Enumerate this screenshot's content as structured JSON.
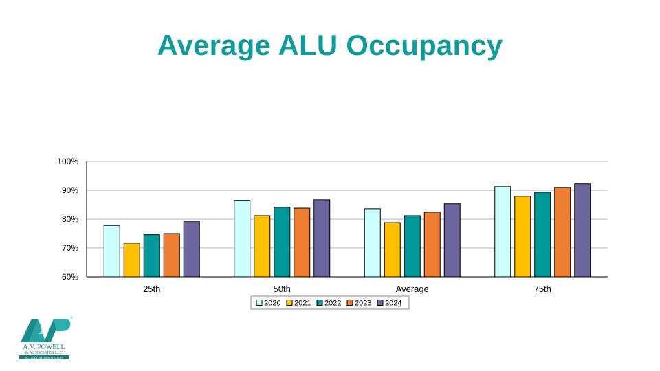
{
  "slide": {
    "title": "Average ALU Occupancy"
  },
  "colors": {
    "title": "#109a9a",
    "gridline": "#b0b0b0",
    "logo": "#1a8c8c"
  },
  "chart_data": {
    "type": "bar",
    "title": "",
    "xlabel": "",
    "ylabel": "",
    "categories": [
      "25th",
      "50th",
      "Average",
      "75th"
    ],
    "ylim": [
      60,
      100
    ],
    "yticks": [
      60,
      70,
      80,
      90,
      100
    ],
    "ytick_labels": [
      "60%",
      "70%",
      "80%",
      "90%",
      "100%"
    ],
    "grid": true,
    "legend_position": "bottom",
    "series": [
      {
        "name": "2020",
        "color": "#ccffff",
        "values": [
          77.8,
          86.5,
          83.6,
          91.4
        ]
      },
      {
        "name": "2021",
        "color": "#ffc000",
        "values": [
          71.7,
          81.2,
          78.8,
          87.9
        ]
      },
      {
        "name": "2022",
        "color": "#009999",
        "values": [
          74.6,
          84.1,
          81.2,
          89.3
        ]
      },
      {
        "name": "2023",
        "color": "#ed7d31",
        "values": [
          75.0,
          83.8,
          82.4,
          91.0
        ]
      },
      {
        "name": "2024",
        "color": "#6b679e",
        "values": [
          79.3,
          86.7,
          85.3,
          92.2
        ]
      }
    ]
  },
  "logo": {
    "line1": "A.V. POWELL",
    "line2": "& ASSOCIATES LLC",
    "line3": "ACTUARIAL INNOVATORS",
    "mark": "AVP",
    "registered": "®"
  }
}
